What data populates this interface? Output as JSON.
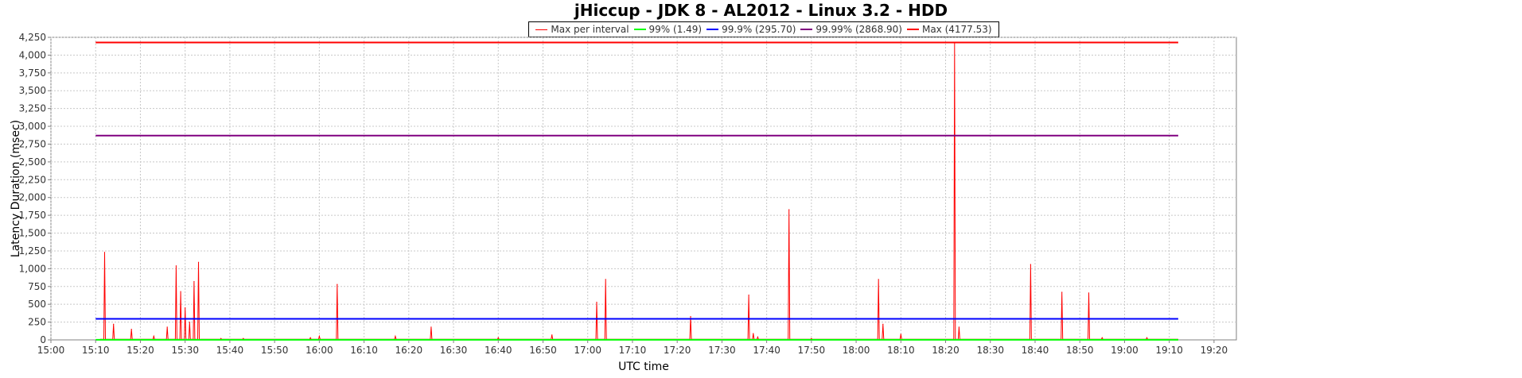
{
  "chart_data": {
    "type": "line",
    "title": "jHiccup - JDK 8 - AL2012 - Linux 3.2 - HDD",
    "xlabel": "UTC time",
    "ylabel": "Latency Duration (msec)",
    "xlim": [
      "15:00",
      "19:25"
    ],
    "ylim": [
      0,
      4250
    ],
    "x_ticks": [
      "15:00",
      "15:10",
      "15:20",
      "15:30",
      "15:40",
      "15:50",
      "16:00",
      "16:10",
      "16:20",
      "16:30",
      "16:40",
      "16:50",
      "17:00",
      "17:10",
      "17:20",
      "17:30",
      "17:40",
      "17:50",
      "18:00",
      "18:10",
      "18:20",
      "18:30",
      "18:40",
      "18:50",
      "19:00",
      "19:10",
      "19:20"
    ],
    "y_ticks": [
      "0",
      "250",
      "500",
      "750",
      "1,000",
      "1,250",
      "1,500",
      "1,750",
      "2,000",
      "2,250",
      "2,500",
      "2,750",
      "3,000",
      "3,250",
      "3,500",
      "3,750",
      "4,000",
      "4,250"
    ],
    "grid": true,
    "legend_position": "top-center",
    "series": [
      {
        "name": "Max per interval",
        "legend_label": "Max per interval",
        "color": "#ff0000",
        "kind": "spikes",
        "x_start": "15:11",
        "x_end": "19:12",
        "baseline": 8,
        "peaks": [
          [
            "15:12",
            1230
          ],
          [
            "15:14",
            220
          ],
          [
            "15:18",
            150
          ],
          [
            "15:23",
            50
          ],
          [
            "15:26",
            180
          ],
          [
            "15:28",
            1040
          ],
          [
            "15:29",
            680
          ],
          [
            "15:30",
            450
          ],
          [
            "15:31",
            250
          ],
          [
            "15:32",
            820
          ],
          [
            "15:33",
            1090
          ],
          [
            "15:38",
            20
          ],
          [
            "15:43",
            20
          ],
          [
            "15:58",
            30
          ],
          [
            "16:00",
            50
          ],
          [
            "16:04",
            780
          ],
          [
            "16:17",
            50
          ],
          [
            "16:25",
            180
          ],
          [
            "16:40",
            30
          ],
          [
            "16:52",
            70
          ],
          [
            "17:02",
            530
          ],
          [
            "17:04",
            850
          ],
          [
            "17:23",
            330
          ],
          [
            "17:36",
            630
          ],
          [
            "17:37",
            90
          ],
          [
            "17:38",
            40
          ],
          [
            "17:45",
            1830
          ],
          [
            "17:50",
            20
          ],
          [
            "18:05",
            850
          ],
          [
            "18:06",
            220
          ],
          [
            "18:10",
            80
          ],
          [
            "18:22",
            4180
          ],
          [
            "18:23",
            180
          ],
          [
            "18:39",
            1060
          ],
          [
            "18:46",
            670
          ],
          [
            "18:52",
            660
          ],
          [
            "18:55",
            30
          ],
          [
            "19:05",
            30
          ]
        ]
      },
      {
        "name": "99%",
        "legend_label": "99% (1.49)",
        "color": "#00ff00",
        "kind": "constant",
        "value": 1.49,
        "x_start": "15:10",
        "x_end": "19:12"
      },
      {
        "name": "99.9%",
        "legend_label": "99.9% (295.70)",
        "color": "#0000ff",
        "kind": "constant",
        "value": 295.7,
        "x_start": "15:10",
        "x_end": "19:12"
      },
      {
        "name": "99.99%",
        "legend_label": "99.99% (2868.90)",
        "color": "#800080",
        "kind": "constant",
        "value": 2868.9,
        "x_start": "15:10",
        "x_end": "19:12"
      },
      {
        "name": "Max",
        "legend_label": "Max (4177.53)",
        "color": "#ff0000",
        "kind": "constant",
        "value": 4177.53,
        "x_start": "15:10",
        "x_end": "19:12"
      }
    ]
  }
}
